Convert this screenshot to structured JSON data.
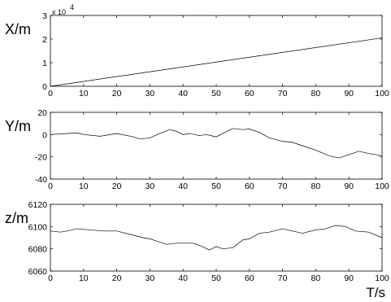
{
  "chart_data": [
    {
      "type": "line",
      "ylabel": "X/m",
      "exponent_base": "x 10",
      "exponent_power": "4",
      "ylim": [
        0,
        3
      ],
      "yticks": [
        0,
        1,
        2,
        3
      ],
      "xlim": [
        0,
        100
      ],
      "xticks": [
        0,
        10,
        20,
        30,
        40,
        50,
        60,
        70,
        80,
        90,
        100
      ],
      "x": [
        0,
        100
      ],
      "y": [
        0.0,
        2.05
      ]
    },
    {
      "type": "line",
      "ylabel": "Y/m",
      "ylim": [
        -40,
        20
      ],
      "yticks": [
        -40,
        -20,
        0,
        20
      ],
      "xlim": [
        0,
        100
      ],
      "xticks": [
        0,
        10,
        20,
        30,
        40,
        50,
        60,
        70,
        80,
        90,
        100
      ],
      "x": [
        0,
        5,
        8,
        10,
        15,
        20,
        25,
        27,
        30,
        33,
        36,
        38,
        40,
        42,
        45,
        47,
        50,
        52,
        55,
        58,
        60,
        63,
        66,
        70,
        73,
        76,
        80,
        84,
        87,
        90,
        93,
        96,
        100
      ],
      "y": [
        0,
        1,
        1.5,
        0,
        -1.5,
        1,
        -2,
        -4,
        -3,
        1,
        4.5,
        3,
        0,
        1,
        -1,
        0,
        -2,
        1,
        5.5,
        4.5,
        5,
        2,
        -3,
        -6,
        -7,
        -10,
        -14,
        -19,
        -21,
        -18,
        -15,
        -17,
        -19
      ]
    },
    {
      "type": "line",
      "ylabel": "z/m",
      "ylim": [
        6060,
        6120
      ],
      "yticks": [
        6060,
        6080,
        6100,
        6120
      ],
      "xlim": [
        0,
        100
      ],
      "xlabel": "T/s",
      "xticks": [
        0,
        10,
        20,
        30,
        40,
        50,
        60,
        70,
        80,
        90,
        100
      ],
      "x": [
        0,
        3,
        5,
        8,
        12,
        16,
        20,
        24,
        28,
        30,
        32,
        35,
        38,
        40,
        43,
        45,
        48,
        50,
        52,
        55,
        58,
        60,
        63,
        66,
        70,
        73,
        76,
        80,
        83,
        86,
        89,
        92,
        96,
        100
      ],
      "y": [
        6096,
        6095,
        6096,
        6098,
        6097,
        6096,
        6096,
        6093,
        6090,
        6089,
        6087,
        6084,
        6085,
        6085,
        6085,
        6083,
        6079,
        6082,
        6080,
        6081,
        6088,
        6089,
        6094,
        6095,
        6098,
        6096,
        6094,
        6097,
        6098,
        6101,
        6100,
        6096,
        6095,
        6090
      ]
    }
  ]
}
